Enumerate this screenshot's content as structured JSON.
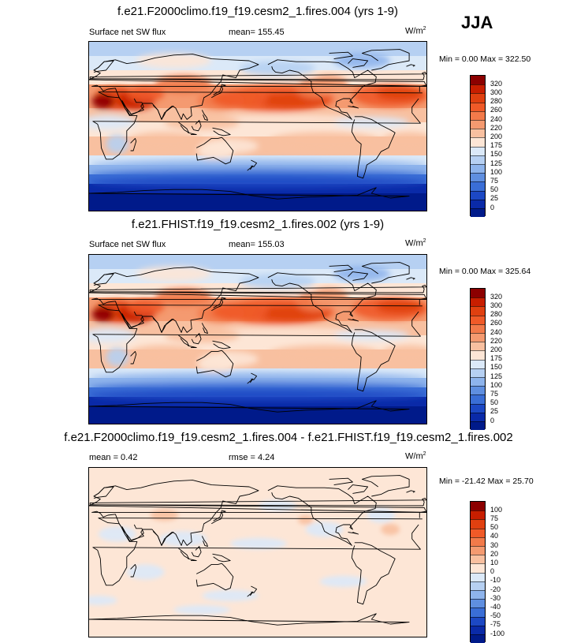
{
  "season": "JJA",
  "panels": [
    {
      "title": "f.e21.F2000climo.f19_f19.cesm2_1.fires.004 (yrs 1-9)",
      "left_text": "Surface net SW flux",
      "center_text": "mean= 155.45",
      "units_base": "W/m",
      "units_sup": "2",
      "minmax": "Min =   0.00 Max = 322.50"
    },
    {
      "title": "f.e21.FHIST.f19_f19.cesm2_1.fires.002 (yrs 1-9)",
      "left_text": "Surface net SW flux",
      "center_text": "mean= 155.03",
      "units_base": "W/m",
      "units_sup": "2",
      "minmax": "Min =   0.00 Max = 325.64"
    },
    {
      "title": "f.e21.F2000climo.f19_f19.cesm2_1.fires.004 - f.e21.FHIST.f19_f19.cesm2_1.fires.002",
      "left_text": "mean =   0.42",
      "center_text": "rmse =   4.24",
      "units_base": "W/m",
      "units_sup": "2",
      "minmax": "Min = -21.42 Max =  25.70"
    }
  ],
  "chart_data": [
    {
      "type": "heatmap",
      "title": "f.e21.F2000climo.f19_f19.cesm2_1.fires.004 (yrs 1-9)",
      "variable": "Surface net SW flux",
      "units": "W/m2",
      "mean": 155.45,
      "min": 0.0,
      "max": 322.5,
      "colorbar_levels": [
        "320",
        "300",
        "280",
        "260",
        "240",
        "220",
        "200",
        "175",
        "150",
        "125",
        "100",
        "75",
        "50",
        "25",
        "0"
      ],
      "colorbar_colors": [
        "#8c0000",
        "#c81e00",
        "#e04010",
        "#f05a28",
        "#f27a4a",
        "#f49a70",
        "#f8c0a0",
        "#fde6d6",
        "#dbe9f8",
        "#b6d0f2",
        "#8eb4ec",
        "#5f8fe0",
        "#3a6ed6",
        "#1c48c4",
        "#0a2aa8",
        "#001a8a"
      ]
    },
    {
      "type": "heatmap",
      "title": "f.e21.FHIST.f19_f19.cesm2_1.fires.002 (yrs 1-9)",
      "variable": "Surface net SW flux",
      "units": "W/m2",
      "mean": 155.03,
      "min": 0.0,
      "max": 325.64,
      "colorbar_levels": [
        "320",
        "300",
        "280",
        "260",
        "240",
        "220",
        "200",
        "175",
        "150",
        "125",
        "100",
        "75",
        "50",
        "25",
        "0"
      ],
      "colorbar_colors": [
        "#8c0000",
        "#c81e00",
        "#e04010",
        "#f05a28",
        "#f27a4a",
        "#f49a70",
        "#f8c0a0",
        "#fde6d6",
        "#dbe9f8",
        "#b6d0f2",
        "#8eb4ec",
        "#5f8fe0",
        "#3a6ed6",
        "#1c48c4",
        "#0a2aa8",
        "#001a8a"
      ]
    },
    {
      "type": "heatmap",
      "title": "f.e21.F2000climo.f19_f19.cesm2_1.fires.004 - f.e21.FHIST.f19_f19.cesm2_1.fires.002",
      "units": "W/m2",
      "mean": 0.42,
      "rmse": 4.24,
      "min": -21.42,
      "max": 25.7,
      "colorbar_levels": [
        "100",
        "75",
        "50",
        "40",
        "30",
        "20",
        "10",
        "0",
        "-10",
        "-20",
        "-30",
        "-40",
        "-50",
        "-75",
        "-100"
      ],
      "colorbar_colors": [
        "#8c0000",
        "#c81e00",
        "#e04010",
        "#f05a28",
        "#f27a4a",
        "#f49a70",
        "#f8c0a0",
        "#fde6d6",
        "#dbe9f8",
        "#b6d0f2",
        "#8eb4ec",
        "#5f8fe0",
        "#3a6ed6",
        "#1c48c4",
        "#0a2aa8",
        "#001a8a"
      ]
    }
  ]
}
